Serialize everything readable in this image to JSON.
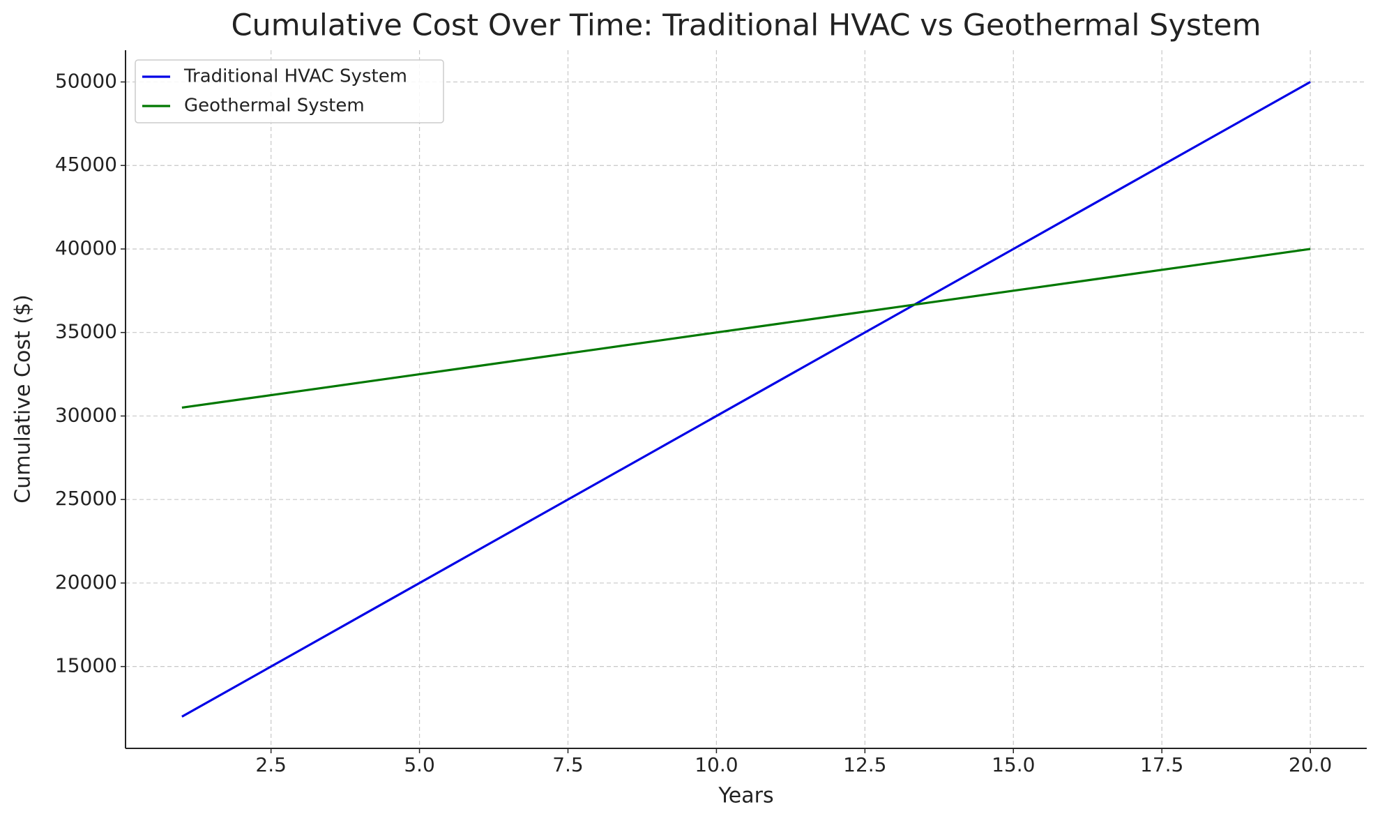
{
  "chart_data": {
    "type": "line",
    "title": "Cumulative Cost Over Time: Traditional HVAC vs Geothermal System",
    "x_label": "Years",
    "y_label": "Cumulative Cost ($)",
    "x": [
      1,
      2,
      3,
      4,
      5,
      6,
      7,
      8,
      9,
      10,
      11,
      12,
      13,
      14,
      15,
      16,
      17,
      18,
      19,
      20
    ],
    "series": [
      {
        "name": "Traditional HVAC System",
        "color": "#0000e6",
        "values": [
          12000,
          14000,
          16000,
          18000,
          20000,
          22000,
          24000,
          26000,
          28000,
          30000,
          32000,
          34000,
          36000,
          38000,
          40000,
          42000,
          44000,
          46000,
          48000,
          50000
        ]
      },
      {
        "name": "Geothermal System",
        "color": "#007800",
        "values": [
          30500,
          31000,
          31500,
          32000,
          32500,
          33000,
          33500,
          34000,
          34500,
          35000,
          35500,
          36000,
          36500,
          37000,
          37500,
          38000,
          38500,
          39000,
          39500,
          40000
        ]
      }
    ],
    "xlim": [
      0.05,
      20.95
    ],
    "xticks": [
      2.5,
      {
        "value": 5,
        "label": "5.0"
      },
      7.5,
      {
        "value": 10,
        "label": "10.0"
      },
      12.5,
      {
        "value": 15,
        "label": "15.0"
      },
      17.5,
      {
        "value": 20,
        "label": "20.0"
      }
    ],
    "ylim": [
      10100,
      51900
    ],
    "yticks": [
      15000,
      20000,
      25000,
      30000,
      35000,
      40000,
      45000,
      50000
    ],
    "grid": true,
    "legend": "upper-left"
  }
}
